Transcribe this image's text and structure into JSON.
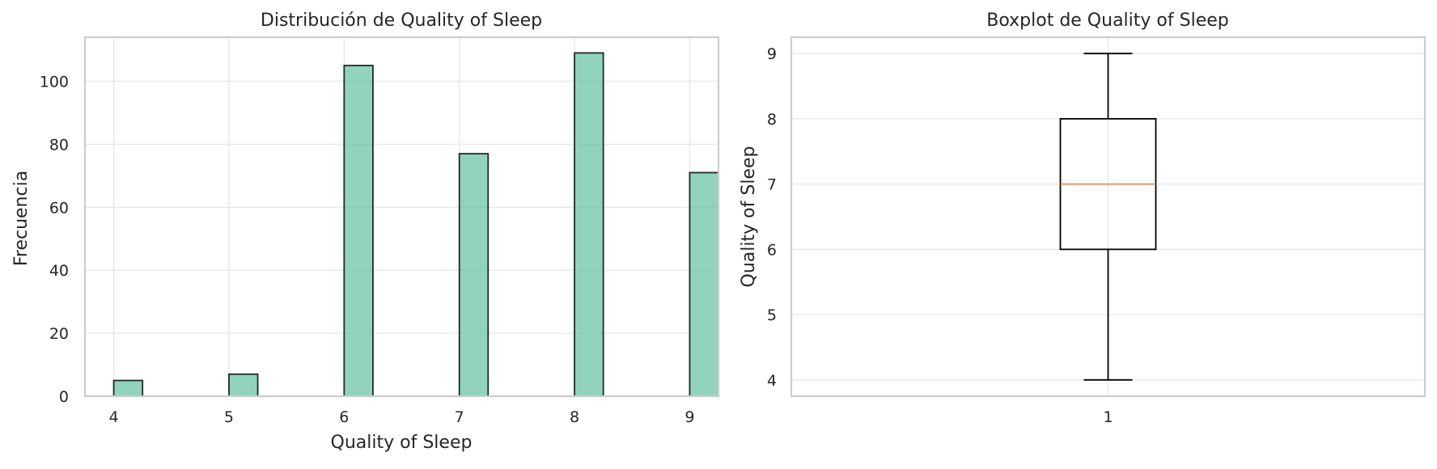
{
  "chart_data": [
    {
      "type": "bar",
      "title": "Distribución de Quality of Sleep",
      "xlabel": "Quality of Sleep",
      "ylabel": "Frecuencia",
      "categories": [
        4,
        5,
        6,
        7,
        8,
        9
      ],
      "values": [
        5,
        7,
        105,
        77,
        109,
        71
      ],
      "xlim": [
        3.75,
        9.25
      ],
      "ylim": [
        0,
        114
      ],
      "x_ticks": [
        4,
        5,
        6,
        7,
        8,
        9
      ],
      "y_ticks": [
        0,
        20,
        40,
        60,
        80,
        100
      ],
      "grid": true,
      "colors": {
        "bar_fill": "#66c2a5",
        "bar_edge": "#1f2b24"
      }
    },
    {
      "type": "box",
      "title": "Boxplot de Quality of Sleep",
      "xlabel": "",
      "ylabel": "Quality of Sleep",
      "x_ticks": [
        "1"
      ],
      "y_ticks": [
        4,
        5,
        6,
        7,
        8,
        9
      ],
      "ylim": [
        3.75,
        9.25
      ],
      "box": {
        "min": 4,
        "q1": 6,
        "median": 7,
        "q3": 8,
        "max": 9
      },
      "grid": true,
      "colors": {
        "box_edge": "#000000",
        "median": "#f5763f"
      }
    }
  ]
}
